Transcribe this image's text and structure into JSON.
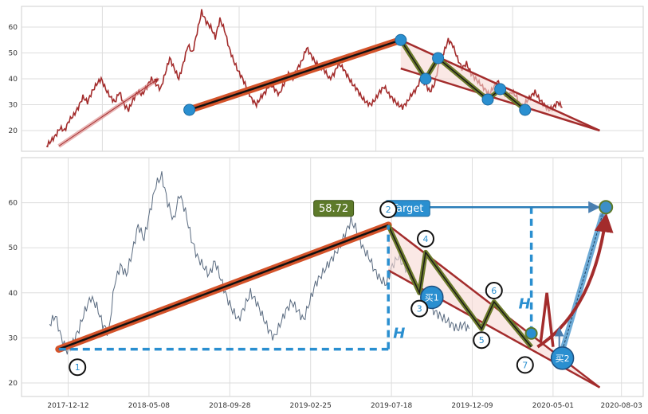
{
  "chart_data": [
    {
      "panel": "top",
      "type": "line",
      "ylim": [
        12,
        68
      ],
      "y_ticks": [
        20,
        30,
        40,
        50,
        60
      ],
      "grid": true,
      "price_color": "#a32c2c",
      "series": [
        {
          "values": [
            14,
            16,
            18,
            21,
            20,
            24,
            26,
            29,
            33,
            31,
            35,
            38,
            40,
            36,
            33,
            31,
            35,
            30,
            28,
            32,
            35,
            34,
            37,
            40,
            38,
            36,
            42,
            48,
            44,
            40,
            46,
            53,
            50,
            58,
            66,
            62,
            60,
            56,
            63,
            59,
            52,
            47,
            43,
            40,
            36,
            32,
            30,
            33,
            35,
            38,
            36,
            34,
            38,
            42,
            40,
            44,
            47,
            52,
            49,
            46,
            45,
            43,
            40,
            42,
            46,
            44,
            41,
            38,
            36,
            33,
            31,
            30,
            32,
            35,
            37,
            34,
            32,
            30,
            29,
            31,
            34,
            36,
            40,
            38,
            35,
            38,
            46,
            50,
            55,
            53,
            48,
            44,
            46,
            42,
            40,
            38,
            36,
            34,
            37,
            39,
            35,
            33,
            35,
            33,
            29,
            31,
            33,
            35,
            32,
            30,
            28,
            29,
            31,
            29
          ]
        }
      ],
      "overlays": {
        "trend_line": {
          "start": [
            0.27,
            28
          ],
          "end": [
            0.61,
            55
          ]
        },
        "channel_lower": {
          "start": [
            0.61,
            44
          ],
          "end": [
            0.93,
            20
          ]
        },
        "channel_upper": {
          "start": [
            0.61,
            55
          ],
          "end": [
            0.93,
            20
          ]
        },
        "arrow": {
          "start": [
            0.06,
            14
          ],
          "end": [
            0.22,
            40
          ]
        },
        "zigzag": [
          [
            0.61,
            55
          ],
          [
            0.65,
            40
          ],
          [
            0.67,
            48
          ],
          [
            0.75,
            32
          ],
          [
            0.77,
            36
          ],
          [
            0.81,
            28
          ]
        ],
        "markers": [
          [
            0.27,
            28
          ],
          [
            0.61,
            55
          ],
          [
            0.65,
            40
          ],
          [
            0.67,
            48
          ],
          [
            0.75,
            32
          ],
          [
            0.77,
            36
          ],
          [
            0.81,
            28
          ]
        ]
      }
    },
    {
      "panel": "bottom",
      "type": "line",
      "ylim": [
        17,
        70
      ],
      "y_ticks": [
        20,
        30,
        40,
        50,
        60
      ],
      "x_tick_labels": [
        "2017-12-12",
        "2018-05-08",
        "2018-09-28",
        "2019-02-25",
        "2019-07-18",
        "2019-12-09",
        "2020-05-01",
        "2020-08-03"
      ],
      "grid": true,
      "price_color": "#5a6b80",
      "series": [
        {
          "values": [
            33,
            35,
            30,
            27,
            29,
            32,
            36,
            39,
            37,
            33,
            31,
            42,
            46,
            44,
            49,
            55,
            52,
            58,
            64,
            66,
            60,
            56,
            62,
            58,
            52,
            48,
            46,
            44,
            47,
            43,
            39,
            36,
            34,
            37,
            40,
            38,
            35,
            32,
            30,
            33,
            36,
            38,
            36,
            34,
            38,
            42,
            44,
            46,
            48,
            50,
            53,
            56,
            54,
            50,
            48,
            45,
            43,
            42,
            46,
            48,
            46,
            44,
            42,
            40,
            38,
            36,
            35,
            34,
            33,
            32,
            33,
            32
          ]
        }
      ],
      "price_label": "58.72",
      "target_label": "Target",
      "h_label": "H",
      "buy_labels": [
        "买1",
        "买2"
      ],
      "wave_labels": [
        "1",
        "2",
        "3",
        "4",
        "5",
        "6",
        "7"
      ],
      "overlays": {
        "trend_line": {
          "start": [
            0.06,
            27.5
          ],
          "end": [
            0.59,
            55
          ]
        },
        "baseline": {
          "start": [
            0.06,
            27.5
          ],
          "end": [
            0.59,
            27.5
          ]
        },
        "vertical_h1": {
          "x": 0.59,
          "from": 27.5,
          "to": 55
        },
        "vertical_h2": {
          "x": 0.82,
          "from": 31,
          "to": 59
        },
        "target_line": {
          "start": [
            0.61,
            59
          ],
          "end": [
            0.94,
            59
          ]
        },
        "channel_upper": {
          "start": [
            0.59,
            55
          ],
          "end": [
            0.93,
            19
          ]
        },
        "channel_lower": {
          "start": [
            0.59,
            45
          ],
          "end": [
            0.93,
            19
          ]
        },
        "zigzag": [
          [
            0.59,
            55
          ],
          [
            0.64,
            40
          ],
          [
            0.65,
            49
          ],
          [
            0.74,
            32
          ],
          [
            0.76,
            38
          ],
          [
            0.82,
            28
          ]
        ],
        "buy_points": [
          [
            0.66,
            39
          ],
          [
            0.87,
            25.5
          ]
        ],
        "wave_points": [
          [
            0.09,
            23.5
          ],
          [
            0.59,
            58.5
          ],
          [
            0.64,
            36.5
          ],
          [
            0.65,
            52
          ],
          [
            0.74,
            29.5
          ],
          [
            0.76,
            40.5
          ],
          [
            0.81,
            24
          ]
        ],
        "target_point": [
          0.94,
          59
        ],
        "small_marker": [
          0.82,
          31
        ]
      }
    }
  ]
}
